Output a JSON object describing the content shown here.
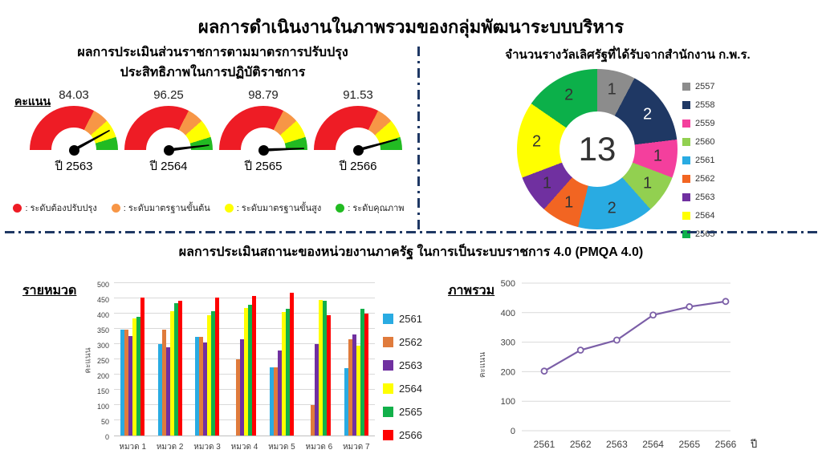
{
  "page": {
    "title": "ผลการดำเนินงานในภาพรวมของกลุ่มพัฒนาระบบบริหาร"
  },
  "sections": {
    "assessment": {
      "title_line1": "ผลการประเมินส่วนราชการตามมาตรการปรับปรุง",
      "title_line2": "ประสิทธิภาพในการปฏิบัติราชการ",
      "score_axis_label": "คะแนน"
    },
    "awards": {
      "title": "จำนวนรางวัลเลิศรัฐที่ได้รับจากสำนักงาน ก.พ.ร."
    },
    "pmqa": {
      "title": "ผลการประเมินสถานะของหน่วยงานภาครัฐ ในการเป็นระบบราชการ 4.0 (PMQA 4.0)",
      "by_category_label": "รายหมวด",
      "overall_label": "ภาพรวม"
    }
  },
  "chart_data": [
    {
      "type": "gauge",
      "title": "ผลการประเมินส่วนราชการตามมาตรการปรับปรุงประสิทธิภาพในการปฏิบัติราชการ",
      "unit_label": "คะแนน",
      "range": [
        0,
        100
      ],
      "gauges": [
        {
          "year": "ปี 2563",
          "value": 84.03
        },
        {
          "year": "ปี 2564",
          "value": 96.25
        },
        {
          "year": "ปี 2565",
          "value": 98.79
        },
        {
          "year": "ปี 2566",
          "value": 91.53
        }
      ],
      "bands": [
        {
          "label": ": ระดับต้องปรับปรุง",
          "from": 0,
          "to": 65,
          "color": "#EE1C25"
        },
        {
          "label": ": ระดับมาตรฐานขั้นต้น",
          "from": 65,
          "to": 77,
          "color": "#F79646"
        },
        {
          "label": ": ระดับมาตรฐานขั้นสูง",
          "from": 77,
          "to": 90.5,
          "color": "#FFFF00"
        },
        {
          "label": ": ระดับคุณภาพ",
          "from": 90.5,
          "to": 100,
          "color": "#22BB22"
        }
      ]
    },
    {
      "type": "pie",
      "title": "จำนวนรางวัลเลิศรัฐที่ได้รับจากสำนักงาน ก.พ.ร.",
      "total": 13,
      "legend_position": "right",
      "slices": [
        {
          "label": "2557",
          "value": 1,
          "color": "#8C8C8C",
          "text_color": "#333333"
        },
        {
          "label": "2558",
          "value": 2,
          "color": "#1F3864",
          "text_color": "#FFFFFF"
        },
        {
          "label": "2559",
          "value": 1,
          "color": "#F43F9D",
          "text_color": "#333333"
        },
        {
          "label": "2560",
          "value": 1,
          "color": "#92D050",
          "text_color": "#333333"
        },
        {
          "label": "2561",
          "value": 2,
          "color": "#29ABE2",
          "text_color": "#333333"
        },
        {
          "label": "2562",
          "value": 1,
          "color": "#F26522",
          "text_color": "#333333"
        },
        {
          "label": "2563",
          "value": 1,
          "color": "#7030A0",
          "text_color": "#333333"
        },
        {
          "label": "2564",
          "value": 2,
          "color": "#FFFF00",
          "text_color": "#333333"
        },
        {
          "label": "2565",
          "value": 2,
          "color": "#0CB04A",
          "text_color": "#333333"
        }
      ]
    },
    {
      "type": "bar",
      "title": "รายหมวด",
      "ylabel": "คะแนน",
      "ylim": [
        0,
        500
      ],
      "ytick_step": 50,
      "grid": true,
      "legend_position": "right",
      "categories": [
        "หมวด 1",
        "หมวด 2",
        "หมวด 3",
        "หมวด 4",
        "หมวด 5",
        "หมวด 6",
        "หมวด 7"
      ],
      "series": [
        {
          "name": "2561",
          "color": "#29ABE2",
          "values": [
            348,
            300,
            323,
            0,
            224,
            0,
            222
          ]
        },
        {
          "name": "2562",
          "color": "#E07B3C",
          "values": [
            348,
            348,
            323,
            249,
            224,
            99,
            315
          ]
        },
        {
          "name": "2563",
          "color": "#7030A0",
          "values": [
            327,
            289,
            306,
            316,
            280,
            301,
            331
          ]
        },
        {
          "name": "2564",
          "color": "#FFFF00",
          "values": [
            385,
            407,
            395,
            418,
            405,
            445,
            295
          ]
        },
        {
          "name": "2565",
          "color": "#12B04A",
          "values": [
            390,
            435,
            408,
            430,
            415,
            442,
            415
          ]
        },
        {
          "name": "2566",
          "color": "#FE0000",
          "values": [
            452,
            441,
            452,
            457,
            468,
            395,
            399
          ]
        }
      ]
    },
    {
      "type": "line",
      "title": "ภาพรวม",
      "xlabel": "ปี",
      "ylabel": "คะแนน",
      "ylim": [
        0,
        500
      ],
      "ytick_step": 100,
      "grid": true,
      "color": "#7B5EA7",
      "x": [
        "2561",
        "2562",
        "2563",
        "2564",
        "2565",
        "2566"
      ],
      "values": [
        202,
        273,
        307,
        392,
        420,
        438
      ]
    }
  ]
}
